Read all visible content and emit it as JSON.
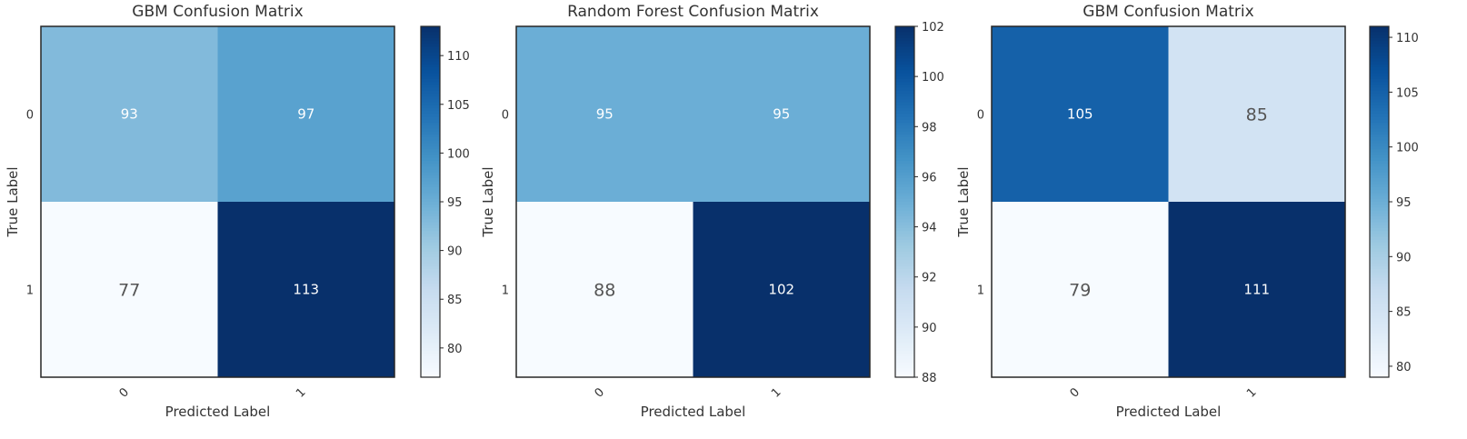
{
  "chart_data": [
    {
      "type": "heatmap",
      "title": "GBM Confusion Matrix",
      "xlabel": "Predicted Label",
      "ylabel": "True Label",
      "x_ticks": [
        "0",
        "1"
      ],
      "y_ticks": [
        "0",
        "1"
      ],
      "values": [
        [
          93,
          97
        ],
        [
          77,
          113
        ]
      ],
      "colorbar": {
        "range": [
          77,
          113
        ],
        "ticks": [
          80,
          85,
          90,
          95,
          100,
          105,
          110
        ]
      },
      "colormap": "Blues"
    },
    {
      "type": "heatmap",
      "title": "Random Forest Confusion Matrix",
      "xlabel": "Predicted Label",
      "ylabel": "True Label",
      "x_ticks": [
        "0",
        "1"
      ],
      "y_ticks": [
        "0",
        "1"
      ],
      "values": [
        [
          95,
          95
        ],
        [
          88,
          102
        ]
      ],
      "colorbar": {
        "range": [
          88,
          102
        ],
        "ticks": [
          88,
          90,
          92,
          94,
          96,
          98,
          100,
          102
        ]
      },
      "colormap": "Blues"
    },
    {
      "type": "heatmap",
      "title": "GBM Confusion Matrix",
      "xlabel": "Predicted Label",
      "ylabel": "True Label",
      "x_ticks": [
        "0",
        "1"
      ],
      "y_ticks": [
        "0",
        "1"
      ],
      "values": [
        [
          105,
          85
        ],
        [
          79,
          111
        ]
      ],
      "colorbar": {
        "range": [
          79,
          111
        ],
        "ticks": [
          80,
          85,
          90,
          95,
          100,
          105,
          110
        ]
      },
      "colormap": "Blues"
    }
  ],
  "colors": {
    "blues_low": "#f7fbff",
    "blues_high": "#08306b",
    "text_light": "#ffffff",
    "text_dark": "#555555",
    "frame": "#262626",
    "label": "#333333"
  }
}
